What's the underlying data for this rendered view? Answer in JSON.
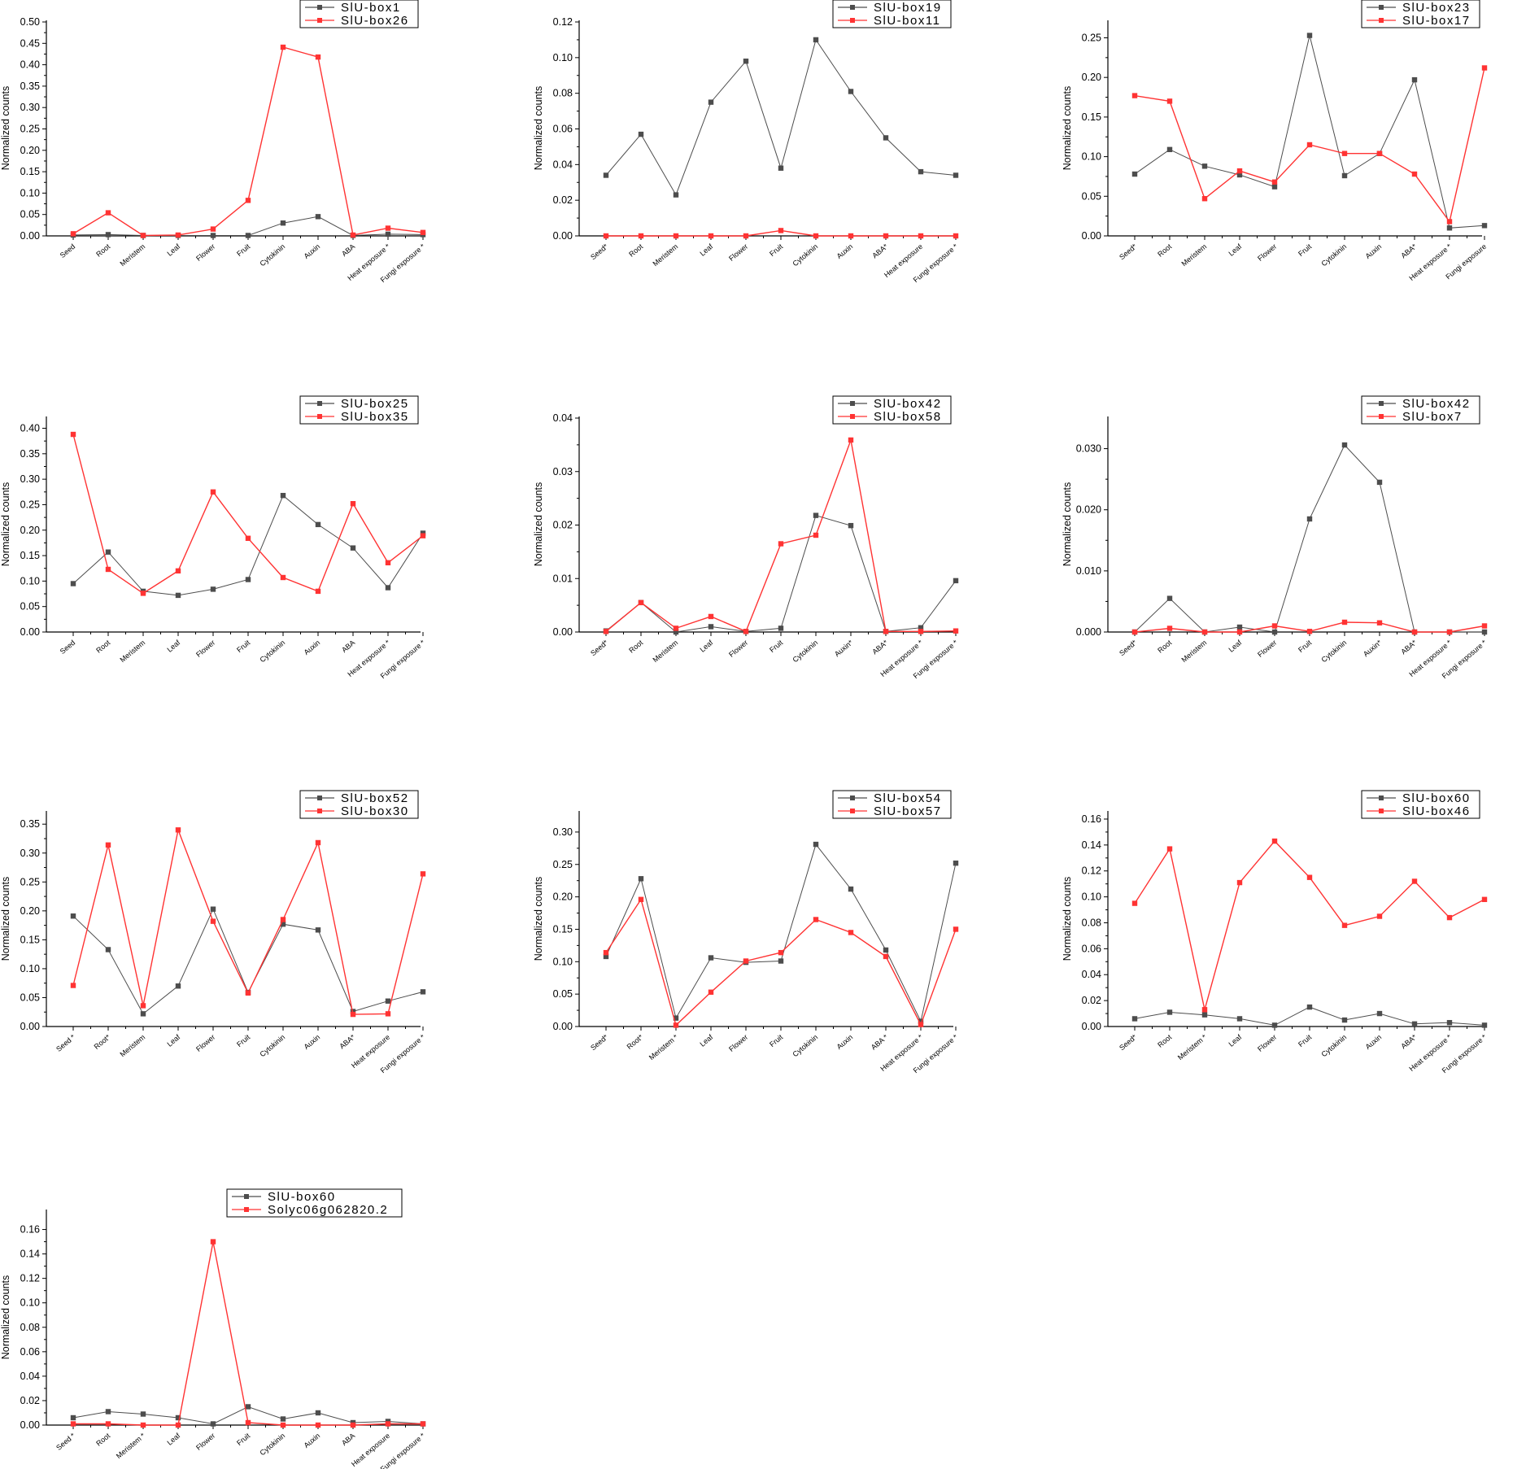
{
  "colors": {
    "series_a": "#4d4d4d",
    "series_b": "#ff3333",
    "axis": "#000000"
  },
  "chart_data": [
    {
      "type": "line",
      "ylabel": "Normalized counts",
      "ylim": [
        0,
        0.5
      ],
      "yticks": [
        "0.00",
        "0.05",
        "0.10",
        "0.15",
        "0.20",
        "0.25",
        "0.30",
        "0.35",
        "0.40",
        "0.45",
        "0.50"
      ],
      "categories": [
        "Seed",
        "Root",
        "Meristem",
        "Leaf",
        "Flower",
        "Fruit",
        "Cytokinin",
        "Auxin",
        "ABA",
        "Heat exposure *",
        "Fungi exposure *"
      ],
      "series": [
        {
          "name": "SlU-box1",
          "values": [
            0.002,
            0.003,
            0.001,
            0.001,
            0.001,
            0.001,
            0.03,
            0.045,
            0.001,
            0.004,
            0.003
          ]
        },
        {
          "name": "SlU-box26",
          "values": [
            0.005,
            0.054,
            0.001,
            0.002,
            0.016,
            0.083,
            0.441,
            0.418,
            0.002,
            0.018,
            0.008
          ]
        }
      ]
    },
    {
      "type": "line",
      "ylabel": "Normalized counts",
      "ylim": [
        0,
        0.12
      ],
      "yticks": [
        "0.00",
        "0.02",
        "0.04",
        "0.06",
        "0.08",
        "0.10",
        "0.12"
      ],
      "categories": [
        "Seed*",
        "Root",
        "Meristem",
        "Leaf",
        "Flower",
        "Fruit",
        "Cytokinin",
        "Auxin",
        "ABA*",
        "Heat exposure",
        "Fungi exposure *"
      ],
      "series": [
        {
          "name": "SlU-box19",
          "values": [
            0.034,
            0.057,
            0.023,
            0.075,
            0.098,
            0.038,
            0.11,
            0.081,
            0.055,
            0.036,
            0.034
          ]
        },
        {
          "name": "SlU-box11",
          "values": [
            0.0,
            0.0,
            0.0,
            0.0,
            0.0,
            0.003,
            0.0,
            0.0,
            0.0,
            0.0,
            0.0
          ]
        }
      ]
    },
    {
      "type": "line",
      "ylabel": "Normalized counts",
      "ylim": [
        0,
        0.27
      ],
      "yticks": [
        "0.00",
        "0.05",
        "0.10",
        "0.15",
        "0.20",
        "0.25"
      ],
      "categories": [
        "Seed*",
        "Root",
        "Meristem",
        "Leaf",
        "Flower",
        "Fruit",
        "Cytokinin",
        "Auxin",
        "ABA*",
        "Heat exposure *",
        "Fungi exposure"
      ],
      "series": [
        {
          "name": "SlU-box23",
          "values": [
            0.078,
            0.109,
            0.088,
            0.077,
            0.062,
            0.253,
            0.076,
            0.104,
            0.197,
            0.01,
            0.013
          ]
        },
        {
          "name": "SlU-box17",
          "values": [
            0.177,
            0.17,
            0.047,
            0.082,
            0.068,
            0.115,
            0.104,
            0.104,
            0.078,
            0.018,
            0.212
          ]
        }
      ]
    },
    {
      "type": "line",
      "ylabel": "Normalized counts",
      "ylim": [
        0,
        0.42
      ],
      "yticks": [
        "0.00",
        "0.05",
        "0.10",
        "0.15",
        "0.20",
        "0.25",
        "0.30",
        "0.35",
        "0.40"
      ],
      "categories": [
        "Seed",
        "Root",
        "Meristem",
        "Leaf",
        "Flower",
        "Fruit",
        "Cytokinin",
        "Auxin",
        "ABA",
        "Heat exposure *",
        "Fungi exposure *"
      ],
      "series": [
        {
          "name": "SlU-box25",
          "values": [
            0.095,
            0.157,
            0.08,
            0.072,
            0.084,
            0.103,
            0.268,
            0.211,
            0.165,
            0.087,
            0.194
          ]
        },
        {
          "name": "SlU-box35",
          "values": [
            0.388,
            0.123,
            0.076,
            0.12,
            0.275,
            0.184,
            0.107,
            0.08,
            0.252,
            0.136,
            0.189
          ]
        }
      ]
    },
    {
      "type": "line",
      "ylabel": "Normalized counts",
      "ylim": [
        0,
        0.04
      ],
      "yticks": [
        "0.00",
        "0.01",
        "0.02",
        "0.03",
        "0.04"
      ],
      "categories": [
        "Seed*",
        "Root",
        "Meristem",
        "Leaf",
        "Flower",
        "Fruit",
        "Cytokinin",
        "Auxin*",
        "ABA*",
        "Heat exposure *",
        "Fungi exposure *"
      ],
      "series": [
        {
          "name": "SlU-box42",
          "values": [
            0.0002,
            0.0055,
            0.0,
            0.001,
            0.0001,
            0.0007,
            0.0218,
            0.0199,
            0.0001,
            0.0008,
            0.0096
          ]
        },
        {
          "name": "SlU-box58",
          "values": [
            0.0001,
            0.0055,
            0.0007,
            0.0029,
            0.0001,
            0.0165,
            0.0181,
            0.0359,
            0.0001,
            0.0001,
            0.0002
          ]
        }
      ]
    },
    {
      "type": "line",
      "ylabel": "Normalized counts",
      "ylim": [
        0,
        0.035
      ],
      "yticks": [
        "0.000",
        "0.010",
        "0.020",
        "0.030"
      ],
      "categories": [
        "Seed*",
        "Root",
        "Meristem",
        "Leaf",
        "Flower",
        "Fruit",
        "Cytokinin",
        "Auxin*",
        "ABA*",
        "Heat exposure *",
        "Fungi exposure *"
      ],
      "series": [
        {
          "name": "SlU-box42",
          "values": [
            0.0,
            0.0055,
            0.0,
            0.0008,
            0.0,
            0.0185,
            0.0306,
            0.0245,
            0.0,
            0.0,
            0.0
          ]
        },
        {
          "name": "SlU-box7",
          "values": [
            0.0,
            0.0006,
            0.0,
            0.0,
            0.001,
            0.0001,
            0.0016,
            0.0015,
            0.0,
            0.0,
            0.001
          ]
        }
      ]
    },
    {
      "type": "line",
      "ylabel": "Normalized counts",
      "ylim": [
        0,
        0.37
      ],
      "yticks": [
        "0.00",
        "0.05",
        "0.10",
        "0.15",
        "0.20",
        "0.25",
        "0.30",
        "0.35"
      ],
      "categories": [
        "Seed *",
        "Root*",
        "Meristem",
        "Leaf",
        "Flower",
        "Fruit",
        "Cytokinin",
        "Auxin",
        "ABA*",
        "Heat exposure",
        "Fungi exposure *"
      ],
      "series": [
        {
          "name": "SlU-box52",
          "values": [
            0.191,
            0.133,
            0.022,
            0.07,
            0.203,
            0.059,
            0.177,
            0.167,
            0.026,
            0.044,
            0.06
          ]
        },
        {
          "name": "SlU-box30",
          "values": [
            0.071,
            0.314,
            0.036,
            0.34,
            0.182,
            0.058,
            0.185,
            0.318,
            0.021,
            0.022,
            0.264
          ]
        }
      ]
    },
    {
      "type": "line",
      "ylabel": "Normalized counts",
      "ylim": [
        0,
        0.33
      ],
      "yticks": [
        "0.00",
        "0.05",
        "0.10",
        "0.15",
        "0.20",
        "0.25",
        "0.30"
      ],
      "categories": [
        "Seed*",
        "Root*",
        "Meristem *",
        "Leaf",
        "Flower",
        "Fruit",
        "Cytokinin",
        "Auxin",
        "ABA *",
        "Heat exposure *",
        "Fungi exposure *"
      ],
      "series": [
        {
          "name": "SlU-box54",
          "values": [
            0.108,
            0.228,
            0.013,
            0.106,
            0.099,
            0.101,
            0.281,
            0.212,
            0.118,
            0.008,
            0.252
          ]
        },
        {
          "name": "SlU-box57",
          "values": [
            0.114,
            0.196,
            0.002,
            0.053,
            0.101,
            0.114,
            0.165,
            0.145,
            0.108,
            0.003,
            0.15
          ]
        }
      ]
    },
    {
      "type": "line",
      "ylabel": "Normalized counts",
      "ylim": [
        0,
        0.165
      ],
      "yticks": [
        "0.00",
        "0.02",
        "0.04",
        "0.06",
        "0.08",
        "0.10",
        "0.12",
        "0.14",
        "0.16"
      ],
      "categories": [
        "Seed*",
        "Root",
        "Meristem *",
        "Leaf",
        "Flower",
        "Fruit",
        "Cytokinin",
        "Auxin",
        "ABA*",
        "Heat exposure *",
        "Fungi exposure *"
      ],
      "series": [
        {
          "name": "SlU-box60",
          "values": [
            0.006,
            0.011,
            0.009,
            0.006,
            0.001,
            0.015,
            0.005,
            0.01,
            0.002,
            0.003,
            0.001
          ]
        },
        {
          "name": "SlU-box46",
          "values": [
            0.095,
            0.137,
            0.013,
            0.111,
            0.143,
            0.115,
            0.078,
            0.085,
            0.112,
            0.084,
            0.098
          ]
        }
      ]
    },
    {
      "type": "line",
      "ylabel": "Normalized counts",
      "ylim": [
        0,
        0.175
      ],
      "yticks": [
        "0.00",
        "0.02",
        "0.04",
        "0.06",
        "0.08",
        "0.10",
        "0.12",
        "0.14",
        "0.16"
      ],
      "categories": [
        "Seed *",
        "Root",
        "Meristem *",
        "Leaf",
        "Flower",
        "Fruit",
        "Cytokinin",
        "Auxin",
        "ABA",
        "Heat exposure",
        "Fungi exposure *"
      ],
      "series": [
        {
          "name": "SlU-box60",
          "values": [
            0.006,
            0.011,
            0.009,
            0.006,
            0.001,
            0.015,
            0.005,
            0.01,
            0.002,
            0.003,
            0.001
          ]
        },
        {
          "name": "Solyc06g062820.2",
          "values": [
            0.001,
            0.001,
            0.0,
            0.0,
            0.15,
            0.002,
            0.0,
            0.0,
            0.0,
            0.001,
            0.001
          ]
        }
      ]
    }
  ]
}
